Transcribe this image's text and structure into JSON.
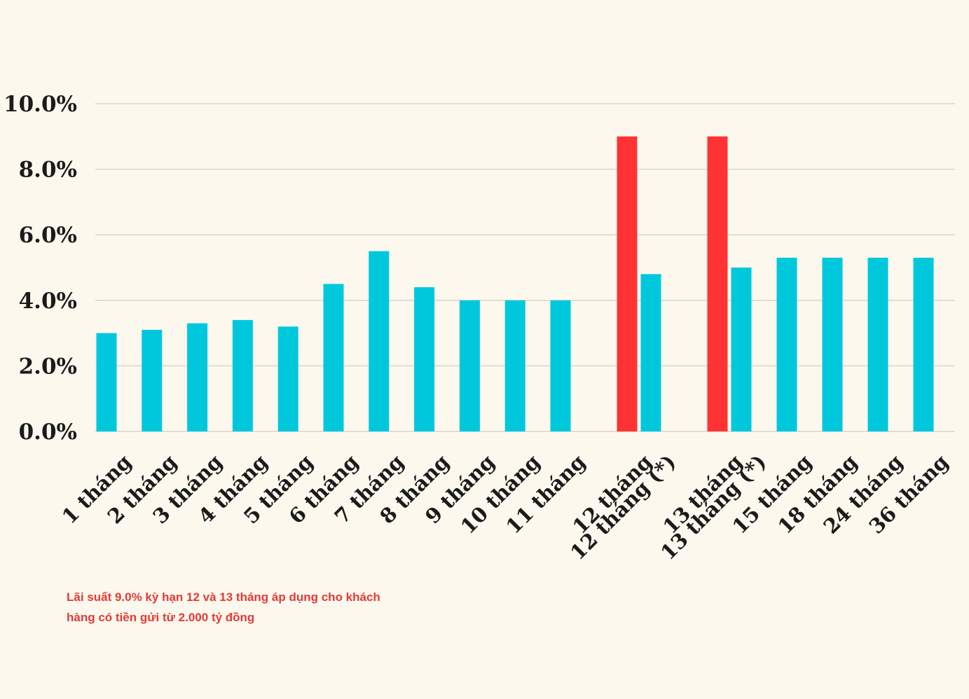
{
  "chart_data": {
    "type": "bar",
    "categories": [
      "1 tháng",
      "2 tháng",
      "3 tháng",
      "4 tháng",
      "5 tháng",
      "6 tháng",
      "7 tháng",
      "8 tháng",
      "9 tháng",
      "10 tháng",
      "11 tháng",
      "12 tháng",
      "12 tháng (*)",
      "13 tháng",
      "13 tháng (*)",
      "15 tháng",
      "18 tháng",
      "24 tháng",
      "36 tháng"
    ],
    "series": [
      {
        "values": [
          3.0,
          3.1,
          3.3,
          3.4,
          3.2,
          4.5,
          5.5,
          4.4,
          4.0,
          4.0,
          4.0,
          9.0,
          4.8,
          9.0,
          5.0,
          5.3,
          5.3,
          5.3,
          5.3
        ],
        "colors": [
          "#00c8dc",
          "#00c8dc",
          "#00c8dc",
          "#00c8dc",
          "#00c8dc",
          "#00c8dc",
          "#00c8dc",
          "#00c8dc",
          "#00c8dc",
          "#00c8dc",
          "#00c8dc",
          "#ff3333",
          "#00c8dc",
          "#ff3333",
          "#00c8dc",
          "#00c8dc",
          "#00c8dc",
          "#00c8dc",
          "#00c8dc"
        ]
      }
    ],
    "y_ticks": [
      "0.0%",
      "2.0%",
      "4.0%",
      "6.0%",
      "8.0%",
      "10.0%"
    ],
    "ylim": [
      0,
      10
    ],
    "grid": true,
    "xlabel": "",
    "ylabel": "",
    "title": ""
  },
  "footnote": {
    "line1": "Lãi suất 9.0% kỳ hạn 12 và 13 tháng áp dụng cho khách",
    "line2": "hàng có tiền gửi từ 2.000 tỷ đồng"
  },
  "colors": {
    "background": "#fcf8ee",
    "standard_bar": "#00c8dc",
    "highlight_bar": "#ff3333",
    "gridline": "#d6d2c6",
    "note": "#e53935"
  }
}
